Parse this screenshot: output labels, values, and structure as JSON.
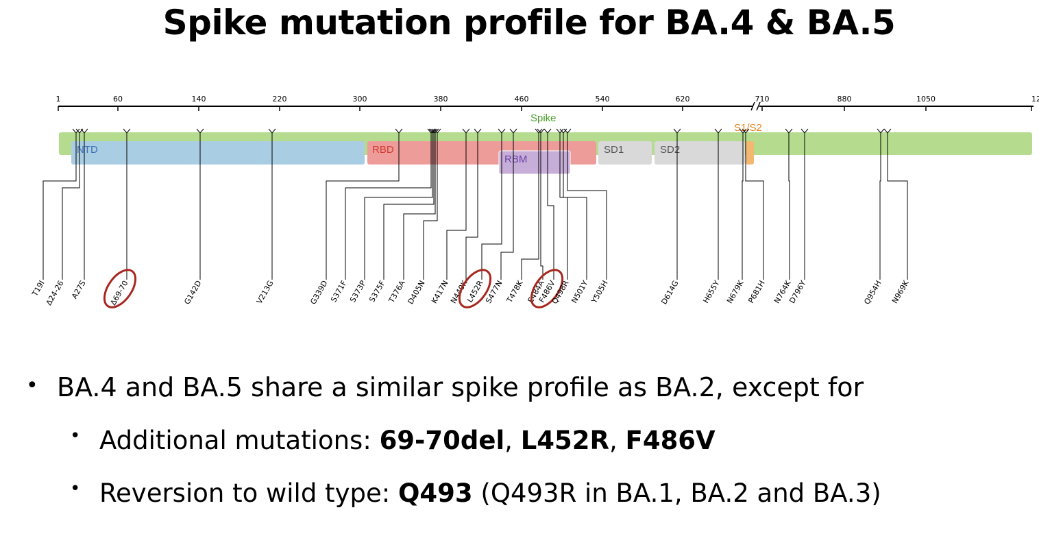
{
  "title": "Spike mutation profile for BA.4 & BA.5",
  "scale": {
    "ticks": [
      "1",
      "60",
      "140",
      "220",
      "300",
      "380",
      "460",
      "540",
      "620",
      "710",
      "880",
      "1050",
      "12"
    ]
  },
  "domains": [
    {
      "id": "spike",
      "label": "Spike",
      "color": "#b5dc8e",
      "label_color": "#4a9e2a"
    },
    {
      "id": "ntd",
      "label": "NTD",
      "color": "#a9cde2",
      "label_color": "#3a6fb5"
    },
    {
      "id": "rbd",
      "label": "RBD",
      "color": "#ee9c9a",
      "label_color": "#d03a2e"
    },
    {
      "id": "rbm",
      "label": "RBM",
      "color": "#c7aed8",
      "label_color": "#6a3fa6"
    },
    {
      "id": "sd1",
      "label": "SD1",
      "color": "#d9d9d9",
      "label_color": "#555555"
    },
    {
      "id": "sd2",
      "label": "SD2",
      "color": "#d9d9d9",
      "label_color": "#555555"
    },
    {
      "id": "s1s2",
      "label": "S1/S2",
      "color": "#f2b872",
      "label_color": "#e8821e"
    }
  ],
  "mutations": [
    {
      "label": "T19I",
      "circled": false
    },
    {
      "label": "Δ24-26",
      "circled": false
    },
    {
      "label": "A27S",
      "circled": false
    },
    {
      "label": "Δ69-70",
      "circled": true
    },
    {
      "label": "G142D",
      "circled": false
    },
    {
      "label": "V213G",
      "circled": false
    },
    {
      "label": "G339D",
      "circled": false
    },
    {
      "label": "S371F",
      "circled": false
    },
    {
      "label": "S373P",
      "circled": false
    },
    {
      "label": "S375F",
      "circled": false
    },
    {
      "label": "T376A",
      "circled": false
    },
    {
      "label": "D405N",
      "circled": false
    },
    {
      "label": "K417N",
      "circled": false
    },
    {
      "label": "N440K",
      "circled": false
    },
    {
      "label": "L452R",
      "circled": true
    },
    {
      "label": "S477N",
      "circled": false
    },
    {
      "label": "T478K",
      "circled": false
    },
    {
      "label": "E484A",
      "circled": false
    },
    {
      "label": "F486V",
      "circled": true
    },
    {
      "label": "Q498R",
      "circled": false
    },
    {
      "label": "N501Y",
      "circled": false
    },
    {
      "label": "Y505H",
      "circled": false
    },
    {
      "label": "D614G",
      "circled": false
    },
    {
      "label": "H655Y",
      "circled": false
    },
    {
      "label": "N679K",
      "circled": false
    },
    {
      "label": "P681H",
      "circled": false
    },
    {
      "label": "N764K",
      "circled": false
    },
    {
      "label": "D796Y",
      "circled": false
    },
    {
      "label": "Q954H",
      "circled": false
    },
    {
      "label": "N969K",
      "circled": false
    }
  ],
  "circle_color": "#a8271f",
  "bullets": {
    "line1": "BA.4 and BA.5 share a similar spike profile as BA.2, except for",
    "line2_prefix": "Additional mutations: ",
    "line2_m1": "69-70del",
    "line2_sep1": ", ",
    "line2_m2": "L452R",
    "line2_sep2": ", ",
    "line2_m3": "F486V",
    "line3_prefix": "Reversion to wild type: ",
    "line3_bold": "Q493",
    "line3_suffix": " (Q493R in BA.1, BA.2 and BA.3)"
  }
}
